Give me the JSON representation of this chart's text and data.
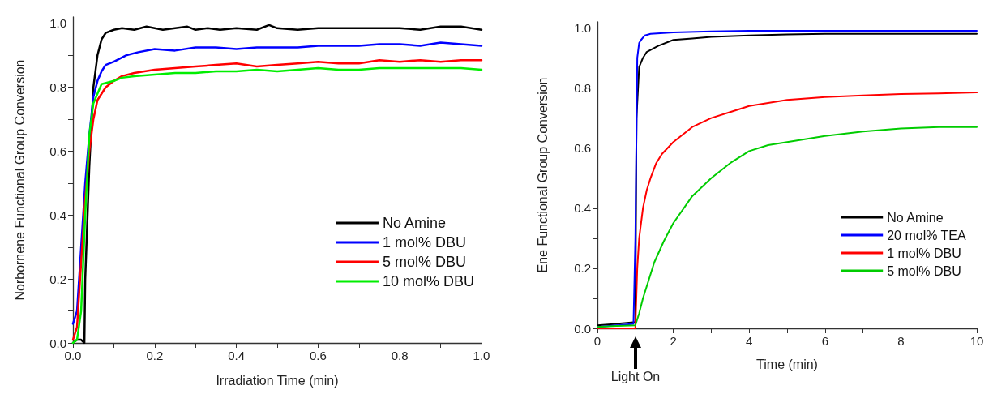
{
  "chart_data": [
    {
      "type": "line",
      "xlabel": "Irradiation Time (min)",
      "ylabel": "Norbornene Functional Group Conversion",
      "legend": "bottom right",
      "marker": "none",
      "line_style": "solid",
      "xlim": [
        0,
        1
      ],
      "ylim": [
        0,
        1.02
      ],
      "xticks": [
        {
          "value": 0,
          "label": "0.0"
        },
        {
          "value": 0.1,
          "label": null
        },
        {
          "value": 0.2,
          "label": "0.2"
        },
        {
          "value": 0.3,
          "label": null
        },
        {
          "value": 0.4,
          "label": "0.4"
        },
        {
          "value": 0.5,
          "label": null
        },
        {
          "value": 0.6,
          "label": "0.6"
        },
        {
          "value": 0.7,
          "label": null
        },
        {
          "value": 0.8,
          "label": "0.8"
        },
        {
          "value": 0.9,
          "label": null
        },
        {
          "value": 1,
          "label": "1.0"
        }
      ],
      "yticks": [
        {
          "value": 0,
          "label": "0.0"
        },
        {
          "value": 0.1,
          "label": null
        },
        {
          "value": 0.2,
          "label": "0.2"
        },
        {
          "value": 0.3,
          "label": null
        },
        {
          "value": 0.4,
          "label": "0.4"
        },
        {
          "value": 0.5,
          "label": null
        },
        {
          "value": 0.6,
          "label": "0.6"
        },
        {
          "value": 0.7,
          "label": null
        },
        {
          "value": 0.8,
          "label": "0.8"
        },
        {
          "value": 0.9,
          "label": null
        },
        {
          "value": 1,
          "label": "1.0"
        }
      ],
      "series": [
        {
          "name": "No Amine",
          "color": "#000000",
          "x": [
            0,
            0.01,
            0.02,
            0.028,
            0.03,
            0.04,
            0.05,
            0.06,
            0.07,
            0.08,
            0.1,
            0.12,
            0.15,
            0.18,
            0.2,
            0.22,
            0.25,
            0.28,
            0.3,
            0.33,
            0.36,
            0.4,
            0.45,
            0.48,
            0.5,
            0.55,
            0.6,
            0.65,
            0.7,
            0.75,
            0.8,
            0.85,
            0.9,
            0.95,
            1.0
          ],
          "values": [
            0.0,
            0.01,
            0.01,
            0.0,
            0.2,
            0.55,
            0.8,
            0.9,
            0.95,
            0.97,
            0.98,
            0.985,
            0.98,
            0.99,
            0.985,
            0.98,
            0.985,
            0.99,
            0.98,
            0.985,
            0.98,
            0.985,
            0.98,
            0.995,
            0.985,
            0.98,
            0.985,
            0.985,
            0.985,
            0.985,
            0.985,
            0.98,
            0.99,
            0.99,
            0.98
          ]
        },
        {
          "name": "1 mol% DBU",
          "color": "#0000ff",
          "x": [
            0,
            0.01,
            0.02,
            0.03,
            0.04,
            0.05,
            0.06,
            0.07,
            0.08,
            0.1,
            0.13,
            0.16,
            0.2,
            0.25,
            0.3,
            0.35,
            0.4,
            0.45,
            0.5,
            0.55,
            0.6,
            0.65,
            0.7,
            0.75,
            0.8,
            0.85,
            0.9,
            0.95,
            1.0
          ],
          "values": [
            0.06,
            0.1,
            0.3,
            0.5,
            0.65,
            0.77,
            0.82,
            0.85,
            0.87,
            0.88,
            0.9,
            0.91,
            0.92,
            0.915,
            0.925,
            0.925,
            0.92,
            0.925,
            0.925,
            0.925,
            0.93,
            0.93,
            0.93,
            0.935,
            0.935,
            0.93,
            0.94,
            0.935,
            0.93
          ]
        },
        {
          "name": "5 mol% DBU",
          "color": "#ff0000",
          "x": [
            0,
            0.01,
            0.02,
            0.03,
            0.04,
            0.05,
            0.06,
            0.08,
            0.1,
            0.12,
            0.15,
            0.2,
            0.25,
            0.3,
            0.35,
            0.4,
            0.45,
            0.5,
            0.55,
            0.6,
            0.65,
            0.7,
            0.75,
            0.8,
            0.85,
            0.9,
            0.95,
            1.0
          ],
          "values": [
            0.01,
            0.05,
            0.25,
            0.45,
            0.6,
            0.7,
            0.76,
            0.8,
            0.82,
            0.835,
            0.845,
            0.855,
            0.86,
            0.865,
            0.87,
            0.875,
            0.865,
            0.87,
            0.875,
            0.88,
            0.875,
            0.875,
            0.885,
            0.88,
            0.885,
            0.88,
            0.885,
            0.885
          ]
        },
        {
          "name": "10 mol% DBU",
          "color": "#00ee00",
          "x": [
            0,
            0.01,
            0.02,
            0.03,
            0.04,
            0.05,
            0.07,
            0.1,
            0.12,
            0.15,
            0.2,
            0.25,
            0.3,
            0.35,
            0.4,
            0.45,
            0.5,
            0.55,
            0.6,
            0.65,
            0.7,
            0.75,
            0.8,
            0.85,
            0.9,
            0.95,
            1.0
          ],
          "values": [
            0.0,
            0.01,
            0.1,
            0.4,
            0.65,
            0.75,
            0.81,
            0.82,
            0.83,
            0.835,
            0.84,
            0.845,
            0.845,
            0.85,
            0.85,
            0.855,
            0.85,
            0.855,
            0.86,
            0.855,
            0.855,
            0.86,
            0.86,
            0.86,
            0.86,
            0.86,
            0.855
          ]
        }
      ]
    },
    {
      "type": "line",
      "xlabel": "Time (min)",
      "ylabel": "Ene Functional Group Conversion",
      "legend": "bottom right",
      "marker": "none",
      "line_style": "solid",
      "xlim": [
        0,
        10
      ],
      "ylim": [
        0,
        1.02
      ],
      "xticks": [
        0,
        {
          "value": 1,
          "label": null
        },
        2,
        {
          "value": 3,
          "label": null
        },
        4,
        {
          "value": 5,
          "label": null
        },
        6,
        {
          "value": 7,
          "label": null
        },
        8,
        {
          "value": 9,
          "label": null
        },
        10
      ],
      "yticks": [
        {
          "value": 0,
          "label": "0.0"
        },
        {
          "value": 0.1,
          "label": null
        },
        {
          "value": 0.2,
          "label": "0.2"
        },
        {
          "value": 0.3,
          "label": null
        },
        {
          "value": 0.4,
          "label": "0.4"
        },
        {
          "value": 0.5,
          "label": null
        },
        {
          "value": 0.6,
          "label": "0.6"
        },
        {
          "value": 0.7,
          "label": null
        },
        {
          "value": 0.8,
          "label": "0.8"
        },
        {
          "value": 0.9,
          "label": null
        },
        {
          "value": 1,
          "label": "1.0"
        }
      ],
      "annotations": [
        "Light On"
      ],
      "series": [
        {
          "name": "No Amine",
          "color": "#000000",
          "x": [
            0,
            0.5,
            0.95,
            1.0,
            1.03,
            1.1,
            1.2,
            1.3,
            1.6,
            2,
            2.5,
            3,
            4,
            5,
            6,
            7,
            8,
            9,
            10
          ],
          "values": [
            0.01,
            0.015,
            0.02,
            0.02,
            0.7,
            0.87,
            0.9,
            0.92,
            0.94,
            0.96,
            0.965,
            0.97,
            0.975,
            0.978,
            0.98,
            0.98,
            0.98,
            0.98,
            0.98
          ]
        },
        {
          "name": "20 mol% TEA",
          "color": "#0000ff",
          "x": [
            0,
            0.5,
            0.95,
            1.0,
            1.05,
            1.1,
            1.15,
            1.25,
            1.4,
            2,
            3,
            4,
            6,
            8,
            10
          ],
          "values": [
            0.005,
            0.01,
            0.015,
            0.3,
            0.9,
            0.95,
            0.96,
            0.975,
            0.98,
            0.985,
            0.988,
            0.99,
            0.99,
            0.99,
            0.99
          ]
        },
        {
          "name": "1 mol% DBU",
          "color": "#ff0000",
          "x": [
            0,
            0.5,
            1.0,
            1.05,
            1.1,
            1.2,
            1.3,
            1.4,
            1.55,
            1.7,
            2,
            2.5,
            3,
            3.5,
            4,
            5,
            6,
            7,
            8,
            9,
            10
          ],
          "values": [
            0,
            0,
            0,
            0.2,
            0.3,
            0.4,
            0.46,
            0.5,
            0.55,
            0.58,
            0.62,
            0.67,
            0.7,
            0.72,
            0.74,
            0.76,
            0.77,
            0.775,
            0.78,
            0.782,
            0.785
          ]
        },
        {
          "name": "5 mol% DBU",
          "color": "#00cc00",
          "x": [
            0,
            0.5,
            1.0,
            1.1,
            1.2,
            1.35,
            1.5,
            1.75,
            2,
            2.5,
            3,
            3.5,
            4,
            4.5,
            5,
            6,
            7,
            8,
            9,
            10
          ],
          "values": [
            0.005,
            0.008,
            0.01,
            0.05,
            0.1,
            0.16,
            0.22,
            0.29,
            0.35,
            0.44,
            0.5,
            0.55,
            0.59,
            0.61,
            0.62,
            0.64,
            0.655,
            0.665,
            0.67,
            0.67
          ]
        }
      ]
    }
  ]
}
